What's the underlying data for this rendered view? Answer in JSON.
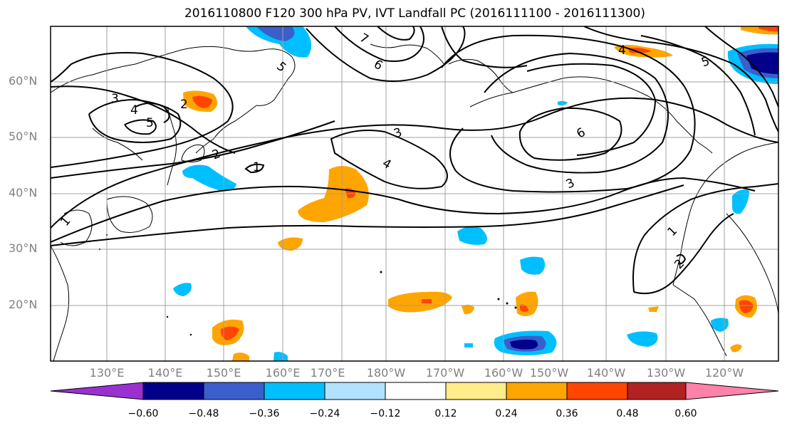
{
  "title": "2016110800 F120 300 hPa PV, IVT Landfall PC (2016111100 - 2016111300)",
  "map": {
    "lat_labels": [
      "60°N",
      "50°N",
      "40°N",
      "30°N",
      "20°N"
    ],
    "lon_labels": [
      "130°E",
      "140°E",
      "150°E",
      "160°E",
      "170°E",
      "180°W",
      "170°W",
      "160°W",
      "150°W",
      "140°W",
      "130°W",
      "120°W"
    ],
    "contour_labels": [
      "1",
      "2",
      "3",
      "3",
      "3",
      "4",
      "4",
      "5",
      "5",
      "6",
      "6",
      "7",
      "1",
      "2",
      "1",
      "2",
      "4",
      "5"
    ]
  },
  "colorbar": {
    "ticks": [
      "−0.60",
      "−0.48",
      "−0.36",
      "−0.24",
      "−0.12",
      "0.12",
      "0.24",
      "0.36",
      "0.48",
      "0.60"
    ],
    "colors": [
      "#9b30d0",
      "#00008b",
      "#3a5fcd",
      "#00bfff",
      "#b0e2ff",
      "#ffffff",
      "#ffec8b",
      "#ffa500",
      "#ff4500",
      "#b22222",
      "#ff82ab"
    ]
  }
}
